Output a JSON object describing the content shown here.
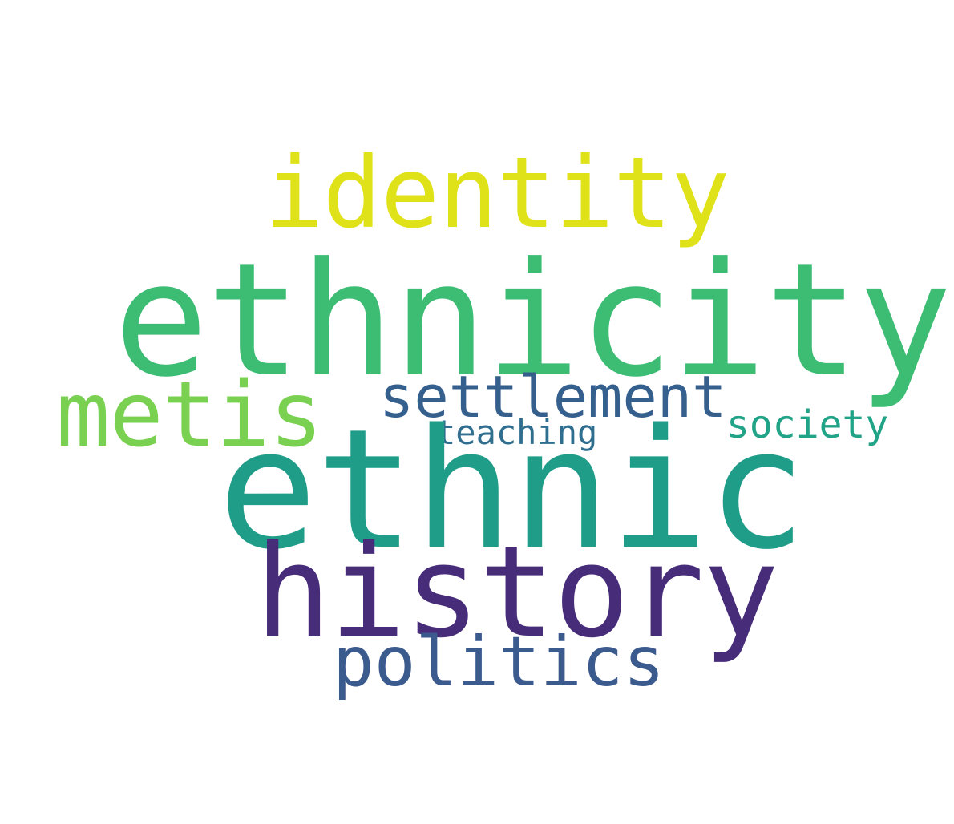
{
  "words": [
    {
      "id": "ethnicity",
      "text": "ethnicity",
      "color": "#3dbc74"
    },
    {
      "id": "ethnic",
      "text": "ethnic",
      "color": "#1f9d89"
    },
    {
      "id": "identity",
      "text": "identity",
      "color": "#e0e219"
    },
    {
      "id": "history",
      "text": "history",
      "color": "#472c7a"
    },
    {
      "id": "metis",
      "text": "metis",
      "color": "#7ad151"
    },
    {
      "id": "settlement",
      "text": "settlement",
      "color": "#355f8d"
    },
    {
      "id": "politics",
      "text": "politics",
      "color": "#3b5a8e"
    },
    {
      "id": "society",
      "text": "society",
      "color": "#20a386"
    },
    {
      "id": "teaching",
      "text": "teaching",
      "color": "#2f6e8e"
    }
  ]
}
